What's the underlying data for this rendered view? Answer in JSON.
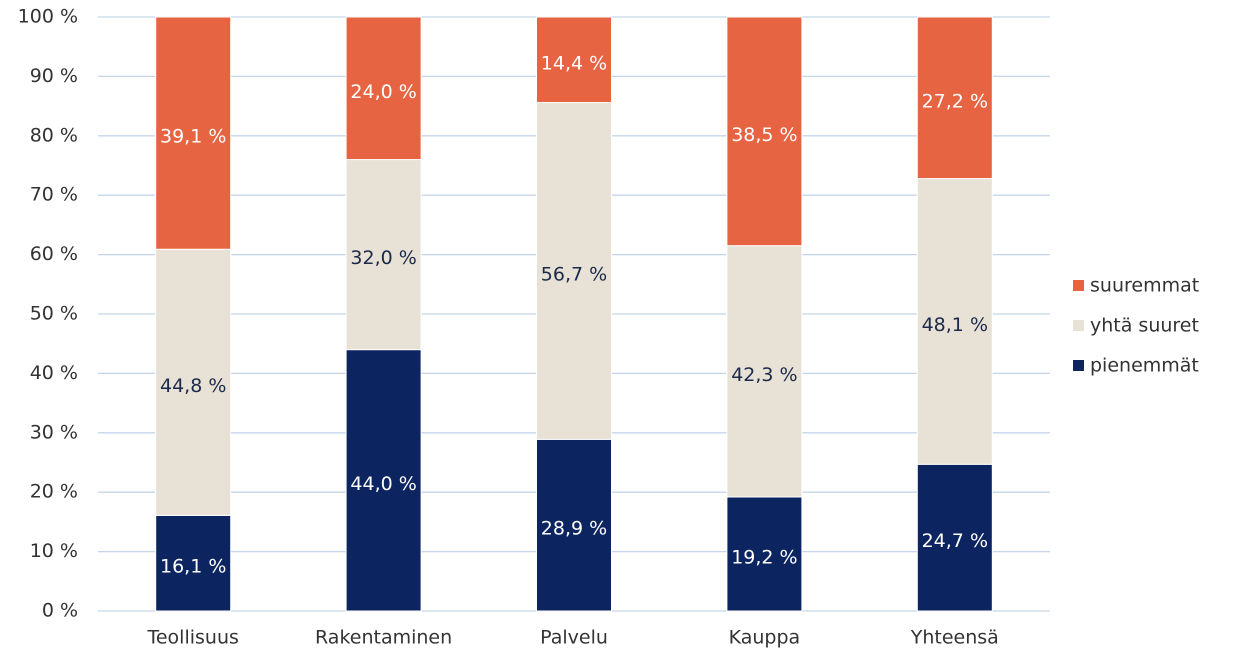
{
  "chart_data": {
    "type": "stacked_bar",
    "categories": [
      "Teollisuus",
      "Rakentaminen",
      "Palvelu",
      "Kauppa",
      "Yhteensä"
    ],
    "series": [
      {
        "name": "pienemmät",
        "color": "#0c2561",
        "values": [
          16.1,
          44.0,
          28.9,
          19.2,
          24.7
        ],
        "value_labels": [
          "16,1 %",
          "44,0 %",
          "28,9 %",
          "19,2 %",
          "24,7 %"
        ]
      },
      {
        "name": "yhtä suuret",
        "color": "#e8e1d5",
        "values": [
          44.8,
          32.0,
          56.7,
          42.3,
          48.1
        ],
        "value_labels": [
          "44,8 %",
          "32,0 %",
          "56,7 %",
          "42,3 %",
          "48,1 %"
        ]
      },
      {
        "name": "suuremmat",
        "color": "#e66442",
        "values": [
          39.1,
          24.0,
          14.4,
          38.5,
          27.2
        ],
        "value_labels": [
          "39,1 %",
          "24,0 %",
          "14,4 %",
          "38,5 %",
          "27,2 %"
        ]
      }
    ],
    "ylim": [
      0,
      100
    ],
    "yticks": [
      {
        "value": 0,
        "label": "0 %"
      },
      {
        "value": 10,
        "label": "10 %"
      },
      {
        "value": 20,
        "label": "20 %"
      },
      {
        "value": 30,
        "label": "30 %"
      },
      {
        "value": 40,
        "label": "40 %"
      },
      {
        "value": 50,
        "label": "50 %"
      },
      {
        "value": 60,
        "label": "60 %"
      },
      {
        "value": 70,
        "label": "70 %"
      },
      {
        "value": 80,
        "label": "80 %"
      },
      {
        "value": 90,
        "label": "90 %"
      },
      {
        "value": 100,
        "label": "100 %"
      }
    ],
    "grid": true,
    "legend": "right"
  }
}
